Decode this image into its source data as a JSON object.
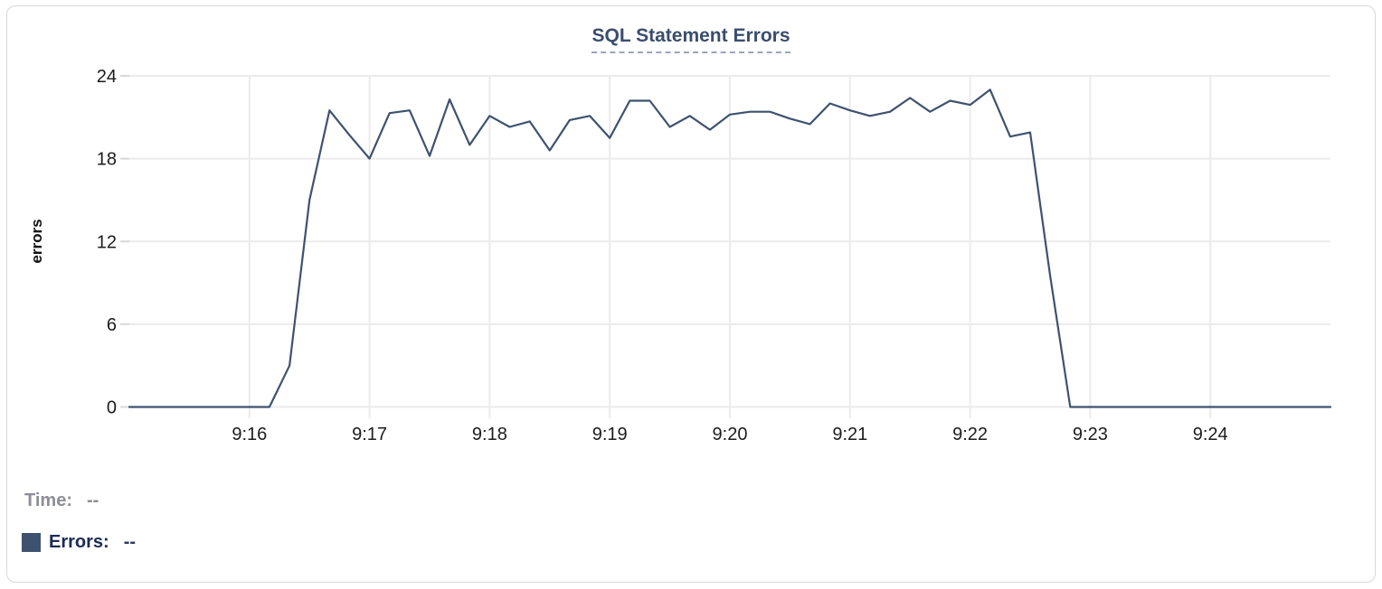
{
  "card": {
    "title": "SQL Statement Errors"
  },
  "legend": {
    "time_label": "Time:",
    "time_value": "--",
    "errors_label": "Errors:",
    "errors_value": "--"
  },
  "colors": {
    "line": "#3e5270",
    "title": "#3b4d6e",
    "gridline": "#ebebeb",
    "tick": "#d9d9d9",
    "axis_text": "#1c1c1c",
    "legend_time": "#8b8e96",
    "legend_errors": "#1c2b52",
    "card_border": "#d8d8d8"
  },
  "chart_data": {
    "type": "line",
    "title": "SQL Statement Errors",
    "xlabel": "",
    "ylabel": "errors",
    "series_name": "Errors",
    "legend_position": "bottom-left",
    "grid": true,
    "markers": false,
    "ylim": [
      0,
      24
    ],
    "y_ticks": [
      0,
      6,
      12,
      18,
      24
    ],
    "x_tick_labels": [
      "9:16",
      "9:17",
      "9:18",
      "9:19",
      "9:20",
      "9:21",
      "9:22",
      "9:23",
      "9:24"
    ],
    "x_range": [
      "9:15:00",
      "9:25:00"
    ],
    "interval_seconds": 10,
    "x": [
      "9:15:00",
      "9:15:10",
      "9:15:20",
      "9:15:30",
      "9:15:40",
      "9:15:50",
      "9:16:00",
      "9:16:10",
      "9:16:20",
      "9:16:30",
      "9:16:40",
      "9:16:50",
      "9:17:00",
      "9:17:10",
      "9:17:20",
      "9:17:30",
      "9:17:40",
      "9:17:50",
      "9:18:00",
      "9:18:10",
      "9:18:20",
      "9:18:30",
      "9:18:40",
      "9:18:50",
      "9:19:00",
      "9:19:10",
      "9:19:20",
      "9:19:30",
      "9:19:40",
      "9:19:50",
      "9:20:00",
      "9:20:10",
      "9:20:20",
      "9:20:30",
      "9:20:40",
      "9:20:50",
      "9:21:00",
      "9:21:10",
      "9:21:20",
      "9:21:30",
      "9:21:40",
      "9:21:50",
      "9:22:00",
      "9:22:10",
      "9:22:20",
      "9:22:30",
      "9:22:40",
      "9:22:50",
      "9:23:00",
      "9:23:10",
      "9:23:20",
      "9:23:30",
      "9:23:40",
      "9:23:50",
      "9:24:00",
      "9:24:10",
      "9:24:20",
      "9:24:30",
      "9:24:40",
      "9:24:50",
      "9:25:00"
    ],
    "values": [
      0,
      0,
      0,
      0,
      0,
      0,
      0,
      0,
      3,
      15,
      21.5,
      19.7,
      18,
      21.3,
      21.5,
      18.2,
      22.3,
      19,
      21.1,
      20.3,
      20.7,
      18.6,
      20.8,
      21.1,
      19.5,
      22.2,
      22.2,
      20.3,
      21.1,
      20.1,
      21.2,
      21.4,
      21.4,
      20.9,
      20.5,
      22,
      21.5,
      21.1,
      21.4,
      22.4,
      21.4,
      22.2,
      21.9,
      23,
      19.6,
      19.9,
      9.5,
      0,
      0,
      0,
      0,
      0,
      0,
      0,
      0,
      0,
      0,
      0,
      0,
      0,
      0
    ]
  }
}
